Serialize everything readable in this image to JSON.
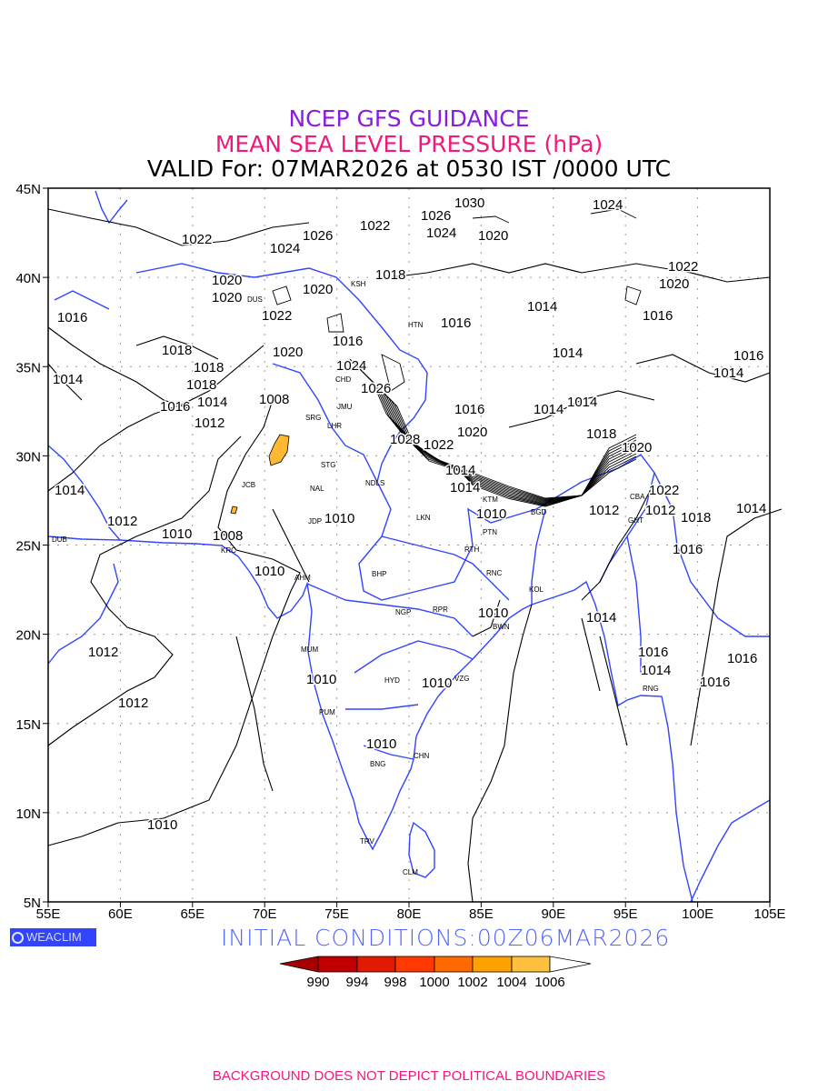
{
  "title": {
    "line1": "NCEP GFS GUIDANCE",
    "line2": "MEAN SEA LEVEL PRESSURE (hPa)",
    "line3": "VALID For: 07MAR2026 at 0530 IST /0000 UTC"
  },
  "colors": {
    "title1": "#8a1be0",
    "title2": "#f0197c",
    "coast": "#3344ff",
    "contour": "#000000",
    "fill_low": "#ffc040"
  },
  "axes": {
    "lon_ticks": [
      "55E",
      "60E",
      "65E",
      "70E",
      "75E",
      "80E",
      "85E",
      "90E",
      "95E",
      "100E",
      "105E"
    ],
    "lat_ticks": [
      "45N",
      "40N",
      "35N",
      "30N",
      "25N",
      "20N",
      "15N",
      "10N",
      "5N"
    ]
  },
  "map": {
    "cities": [
      "DUB",
      "KRC",
      "JCB",
      "NAL",
      "JDP",
      "AHM",
      "MUM",
      "PUM",
      "BNG",
      "TRV",
      "CLM",
      "CHN",
      "HYD",
      "VZG",
      "NGP",
      "BHP",
      "RPR",
      "BWN",
      "KOL",
      "RNC",
      "RTH",
      "PTN",
      "LKN",
      "NDLS",
      "STG",
      "SRG",
      "LHR",
      "JMU",
      "KSH",
      "HTN",
      "KTM",
      "GHT",
      "RNG",
      "DUS",
      "CHD",
      "BGD",
      "CBA"
    ],
    "contour_labels": [
      "1022",
      "1020",
      "1016",
      "1018",
      "1014",
      "1018",
      "1016",
      "1014",
      "1012",
      "1014",
      "1012",
      "1010",
      "1008",
      "1012",
      "1012",
      "1010",
      "1010",
      "1010",
      "1010",
      "1010",
      "1010",
      "1010",
      "1010",
      "1014",
      "1014",
      "1014",
      "1016",
      "1016",
      "1014",
      "1014",
      "1018",
      "1020",
      "1022",
      "1012",
      "1012",
      "1018",
      "1016",
      "1014",
      "1014",
      "1016",
      "1016",
      "1014",
      "1016",
      "1022",
      "1020",
      "1024",
      "1030",
      "1026",
      "1024",
      "1022",
      "1026",
      "1024",
      "1020",
      "1022",
      "1020",
      "1018",
      "1018",
      "1016",
      "1014",
      "1016",
      "1024",
      "1026",
      "1028",
      "1022",
      "1020",
      "1016",
      "1014",
      "1008",
      "1020",
      "1020"
    ]
  },
  "footer": {
    "logo": "WEACLIM",
    "initial": "INITIAL  CONDITIONS:00Z06MAR2026",
    "disclaimer": "BACKGROUND DOES NOT DEPICT POLITICAL BOUNDARIES"
  },
  "colorbar": {
    "labels": [
      "990",
      "994",
      "998",
      "1000",
      "1002",
      "1004",
      "1006"
    ],
    "colors": [
      "#a80000",
      "#c00000",
      "#e21a00",
      "#ff3a00",
      "#ff6a00",
      "#ffa200",
      "#ffc040",
      "#ffffff"
    ]
  }
}
